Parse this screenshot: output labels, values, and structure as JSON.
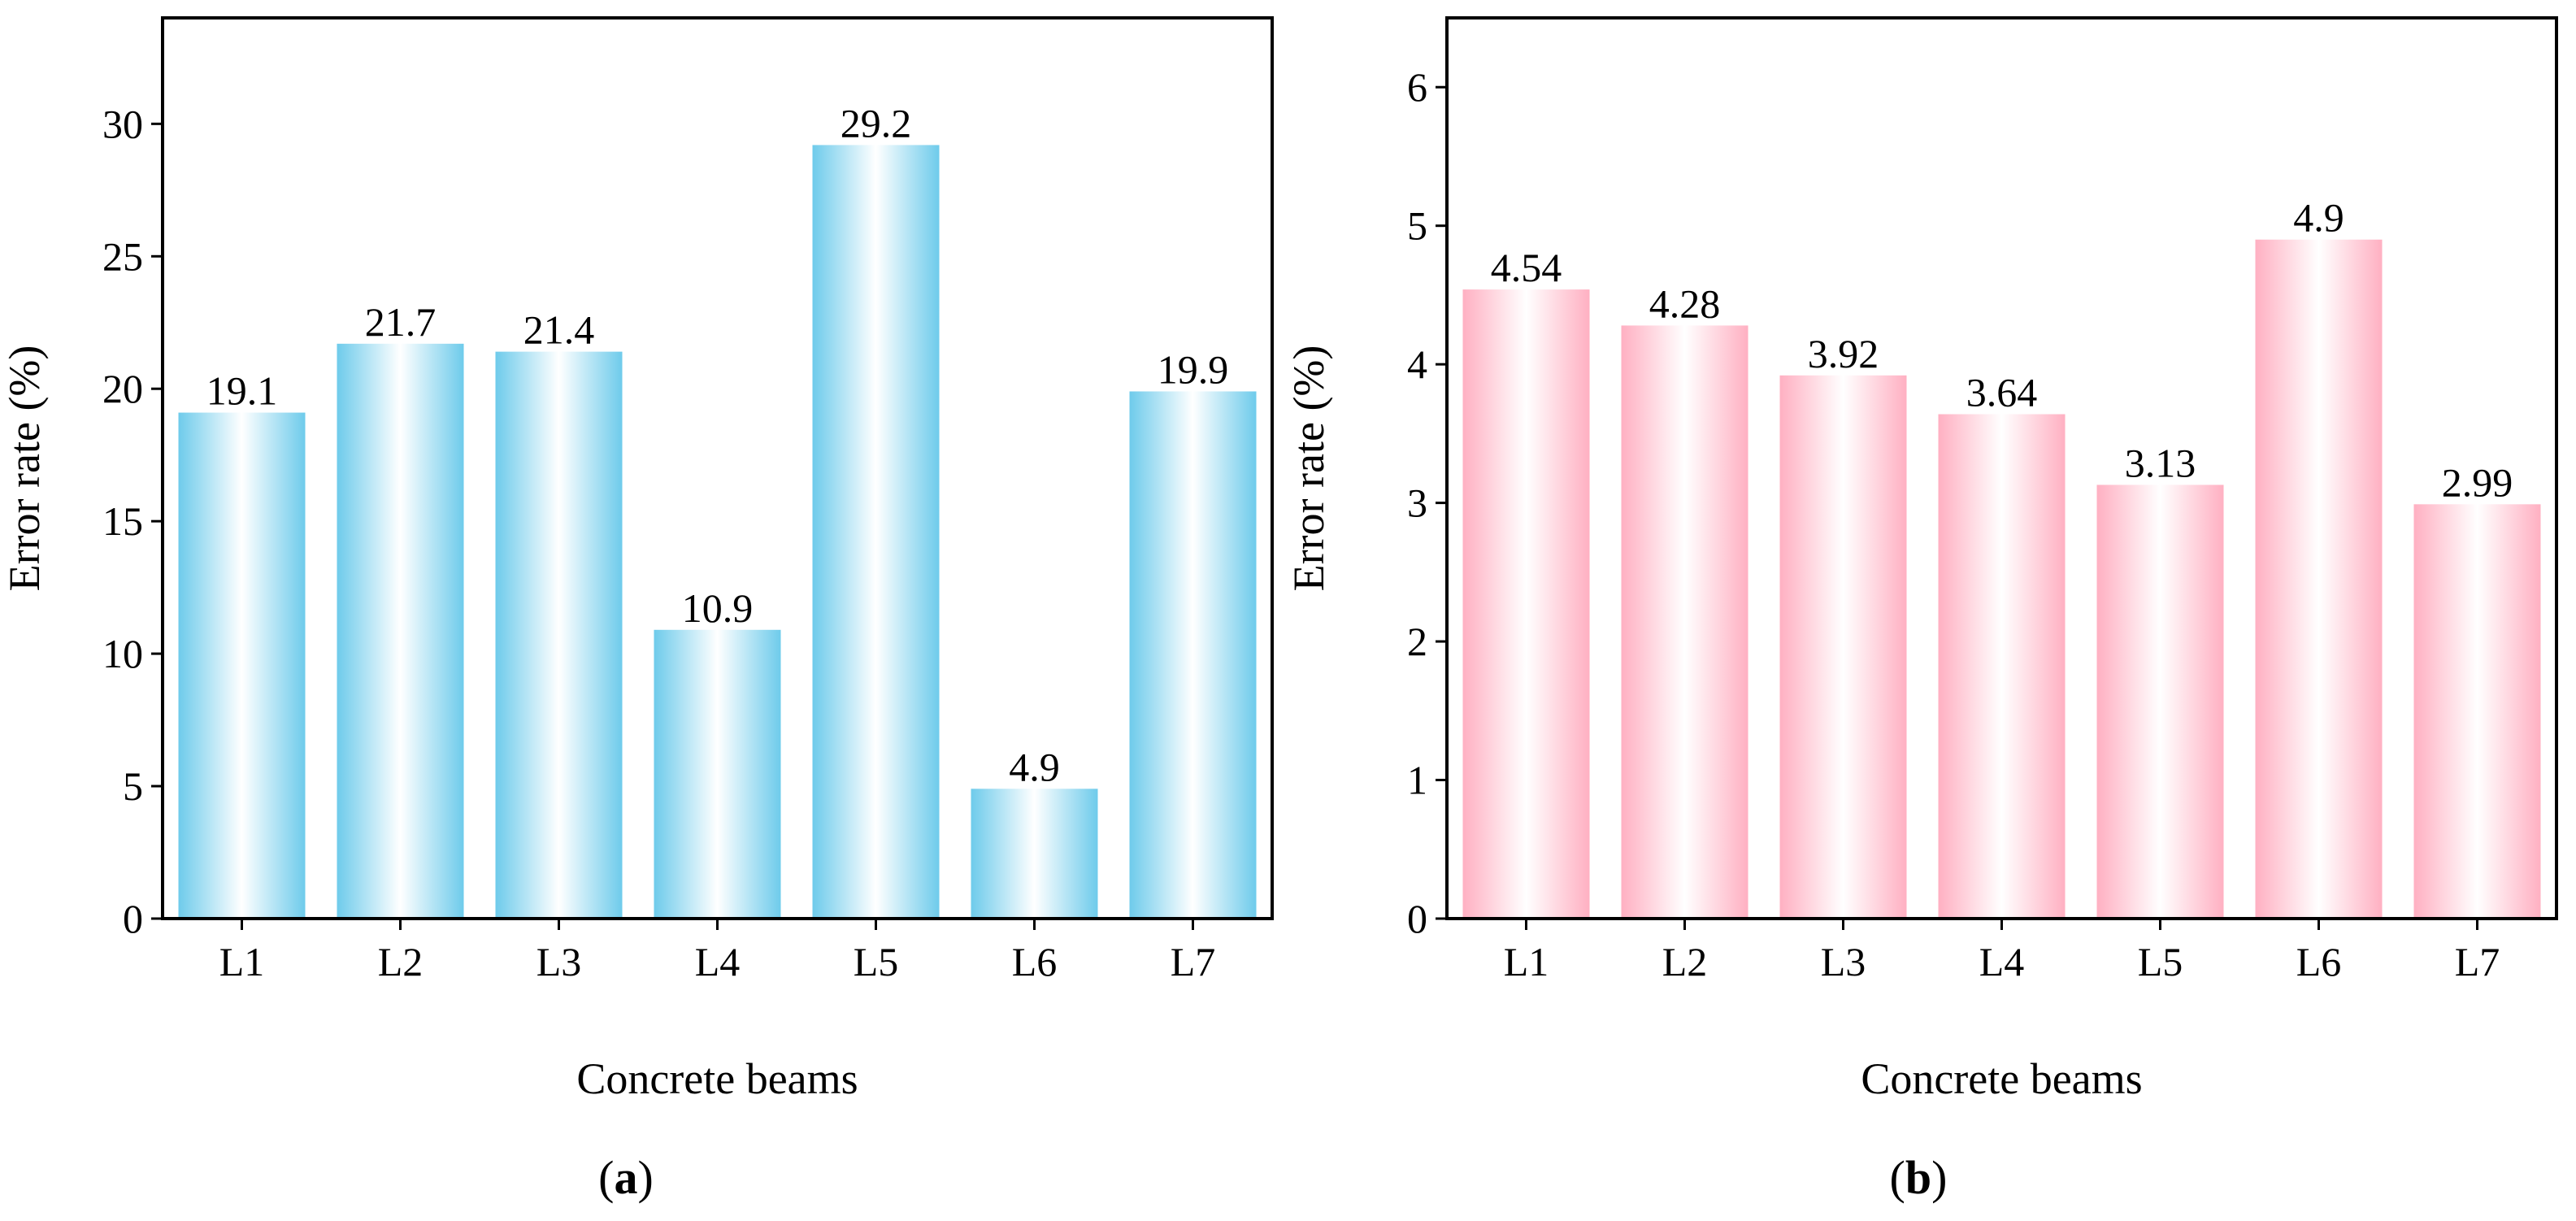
{
  "chart_data": [
    {
      "type": "bar",
      "panel_label": "(a)",
      "panel_letter": "a",
      "categories": [
        "L1",
        "L2",
        "L3",
        "L4",
        "L5",
        "L6",
        "L7"
      ],
      "values": [
        19.1,
        21.7,
        21.4,
        10.9,
        29.2,
        4.9,
        19.9
      ],
      "value_labels": [
        "19.1",
        "21.7",
        "21.4",
        "10.9",
        "29.2",
        "4.9",
        "19.9"
      ],
      "xlabel": "Concrete beams",
      "ylabel": "Error rate (%)",
      "ylim": [
        0,
        34
      ],
      "yticks": [
        0,
        5,
        10,
        15,
        20,
        25,
        30
      ],
      "bar_color": "#6ECBEB",
      "grid": false
    },
    {
      "type": "bar",
      "panel_label": "(b)",
      "panel_letter": "b",
      "categories": [
        "L1",
        "L2",
        "L3",
        "L4",
        "L5",
        "L6",
        "L7"
      ],
      "values": [
        4.54,
        4.28,
        3.92,
        3.64,
        3.13,
        4.9,
        2.99
      ],
      "value_labels": [
        "4.54",
        "4.28",
        "3.92",
        "3.64",
        "3.13",
        "4.9",
        "2.99"
      ],
      "xlabel": "Concrete beams",
      "ylabel": "Error rate (%)",
      "ylim": [
        0,
        6.5
      ],
      "yticks": [
        0,
        1,
        2,
        3,
        4,
        5,
        6
      ],
      "bar_color": "#FFB0C2",
      "grid": false
    }
  ]
}
